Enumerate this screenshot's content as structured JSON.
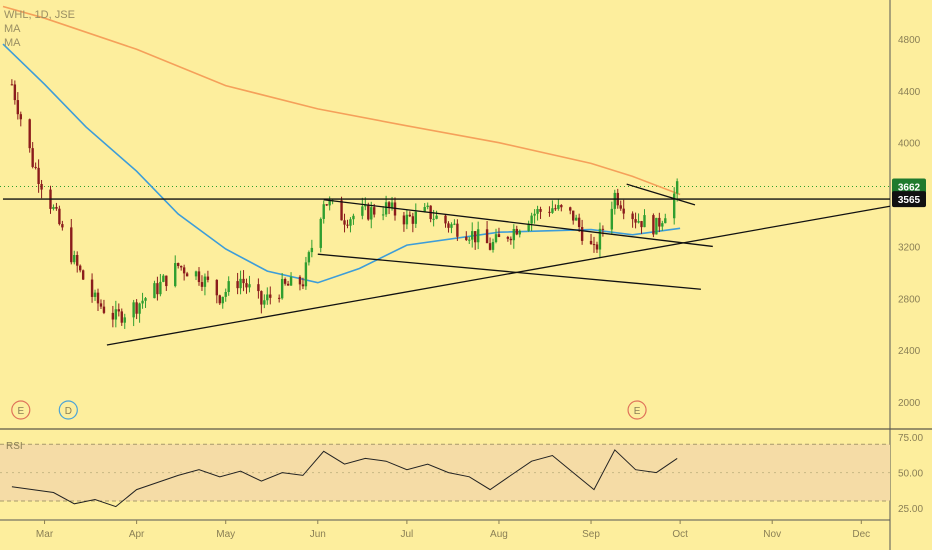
{
  "legend": {
    "symbol_line": "WHL, 1D, JSE",
    "ma1_label": "MA",
    "ma2_label": "MA"
  },
  "price_tags": [
    {
      "label": "3662",
      "value": 3662,
      "bg": "#1f7a2e",
      "fg": "#ffffff"
    },
    {
      "label": "3565",
      "value": 3565,
      "bg": "#111111",
      "fg": "#ffffff"
    }
  ],
  "events": [
    {
      "label": "E",
      "month": "Feb",
      "offset": 0.7,
      "color": "#e0735a"
    },
    {
      "label": "D",
      "month": "Mar",
      "offset": 0.3,
      "color": "#4aa3d8"
    },
    {
      "label": "E",
      "month": "Sep",
      "offset": 0.55,
      "color": "#e0735a"
    }
  ],
  "rsi_label": "RSI",
  "colors": {
    "up": "#2f9e2f",
    "down": "#8b1c1c",
    "ma_long": "#f5a05a",
    "ma_short": "#3d9dd9",
    "rsi": "#222222",
    "rsi_band": "#f5dca6"
  },
  "chart_data": [
    {
      "type": "line",
      "title": "WHL, 1D, JSE",
      "x_months": [
        "Mar",
        "Apr",
        "May",
        "Jun",
        "Jul",
        "Aug",
        "Sep",
        "Oct",
        "Nov",
        "Dec"
      ],
      "y_ticks": [
        2000,
        2400,
        2800,
        3200,
        3600,
        4000,
        4400,
        4800
      ],
      "ylim": [
        1800,
        5100
      ],
      "series": [
        {
          "role": "close",
          "x": [
            "Feb 18",
            "Feb 25",
            "Mar 04",
            "Mar 11",
            "Mar 18",
            "Mar 25",
            "Apr 01",
            "Apr 08",
            "Apr 15",
            "Apr 22",
            "Apr 29",
            "May 06",
            "May 13",
            "May 20",
            "May 27",
            "Jun 03",
            "Jun 10",
            "Jun 17",
            "Jun 24",
            "Jul 01",
            "Jul 08",
            "Jul 15",
            "Jul 22",
            "Jul 29",
            "Aug 05",
            "Aug 12",
            "Aug 19",
            "Aug 26",
            "Sep 02",
            "Sep 09",
            "Sep 16",
            "Sep 23",
            "Sep 30"
          ],
          "y": [
            4450,
            3850,
            3480,
            3080,
            2780,
            2650,
            2750,
            2880,
            3050,
            2980,
            2820,
            2950,
            2760,
            2880,
            2930,
            3560,
            3420,
            3460,
            3500,
            3410,
            3460,
            3370,
            3310,
            3200,
            3310,
            3450,
            3500,
            3430,
            3150,
            3600,
            3420,
            3350,
            3640
          ]
        },
        {
          "role": "ma-long",
          "x": [
            "Feb 15",
            "Mar 01",
            "Apr 01",
            "May 01",
            "Jun 01",
            "Jul 01",
            "Aug 01",
            "Sep 01",
            "Sep 15",
            "Oct 01"
          ],
          "y": [
            5050,
            4960,
            4720,
            4440,
            4260,
            4130,
            4000,
            3840,
            3740,
            3600
          ]
        },
        {
          "role": "ma-short",
          "x": [
            "Feb 15",
            "Mar 01",
            "Mar 15",
            "Apr 01",
            "Apr 15",
            "May 01",
            "May 15",
            "Jun 01",
            "Jun 15",
            "Jul 01",
            "Aug 01",
            "Sep 01",
            "Sep 15",
            "Oct 01"
          ],
          "y": [
            4760,
            4450,
            4120,
            3780,
            3450,
            3180,
            3010,
            2920,
            3030,
            3210,
            3310,
            3330,
            3290,
            3340
          ]
        }
      ],
      "trendlines": [
        {
          "x": [
            "Mar 22",
            "Dec 31"
          ],
          "y": [
            2440,
            3510
          ]
        },
        {
          "x": [
            "Jun 01",
            "Oct 08"
          ],
          "y": [
            3140,
            2870
          ]
        },
        {
          "x": [
            "Jun 03",
            "Oct 12"
          ],
          "y": [
            3560,
            3200
          ]
        },
        {
          "x": [
            "Sep 13",
            "Oct 06"
          ],
          "y": [
            3680,
            3520
          ]
        },
        {
          "x": [
            "Feb 15",
            "Dec 31"
          ],
          "y": [
            3565,
            3565
          ]
        }
      ]
    },
    {
      "type": "line",
      "title": "RSI",
      "y_ticks": [
        25,
        50,
        75
      ],
      "ylim": [
        18,
        80
      ],
      "band": [
        30,
        70
      ],
      "series": [
        {
          "role": "rsi",
          "x": [
            "Feb 18",
            "Feb 25",
            "Mar 04",
            "Mar 11",
            "Mar 18",
            "Mar 25",
            "Apr 01",
            "Apr 08",
            "Apr 15",
            "Apr 22",
            "Apr 29",
            "May 06",
            "May 13",
            "May 20",
            "May 27",
            "Jun 03",
            "Jun 10",
            "Jun 17",
            "Jun 24",
            "Jul 01",
            "Jul 08",
            "Jul 15",
            "Jul 22",
            "Jul 29",
            "Aug 05",
            "Aug 12",
            "Aug 19",
            "Aug 26",
            "Sep 02",
            "Sep 09",
            "Sep 16",
            "Sep 23",
            "Sep 30"
          ],
          "y": [
            40,
            38,
            36,
            28,
            31,
            26,
            38,
            43,
            48,
            52,
            47,
            51,
            44,
            50,
            48,
            65,
            56,
            60,
            58,
            52,
            56,
            50,
            47,
            38,
            48,
            58,
            62,
            50,
            38,
            66,
            52,
            50,
            60
          ]
        }
      ]
    }
  ]
}
